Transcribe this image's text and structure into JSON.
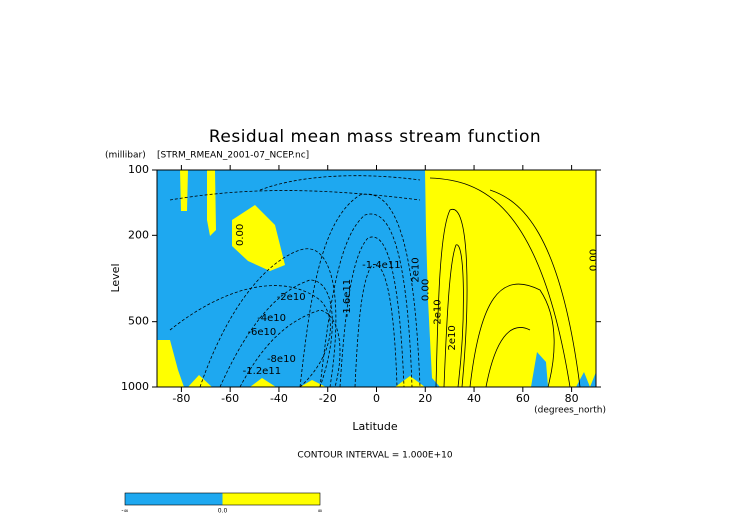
{
  "chart_data": {
    "type": "contour",
    "title": "Residual mean mass stream function",
    "subtitle": "[STRM_RMEAN_2001-07_NCEP.nc]",
    "y_unit": "(millibar)",
    "x_unit": "(degrees_north)",
    "xlabel": "Latitude",
    "ylabel": "Level",
    "note": "CONTOUR INTERVAL = 1.000E+10",
    "xlim": [
      -90,
      90
    ],
    "xticks": [
      -80,
      -60,
      -40,
      -20,
      0,
      20,
      40,
      60,
      80
    ],
    "ylim": [
      1000,
      100
    ],
    "yticks": [
      100,
      200,
      500,
      1000
    ],
    "ylog": true,
    "negative_color": "#1ea8f0",
    "positive_color": "#ffff00",
    "contour_labels": [
      {
        "label": "0.00",
        "x": -56,
        "y": 199,
        "vertical": true
      },
      {
        "label": "-2e10",
        "x": -35,
        "y": 385,
        "vertical": false
      },
      {
        "label": "-4e10",
        "x": -43,
        "y": 481,
        "vertical": false
      },
      {
        "label": "-6e10",
        "x": -47,
        "y": 558,
        "vertical": false
      },
      {
        "label": "-8e10",
        "x": -39,
        "y": 743,
        "vertical": false
      },
      {
        "label": "-1.2e11",
        "x": -47,
        "y": 843,
        "vertical": false
      },
      {
        "label": "-1.4e11",
        "x": 2,
        "y": 274,
        "vertical": false
      },
      {
        "label": "-1.6e11",
        "x": -12,
        "y": 389,
        "vertical": true
      },
      {
        "label": "2e10",
        "x": 16,
        "y": 289,
        "vertical": true
      },
      {
        "label": "0.00",
        "x": 20,
        "y": 357,
        "vertical": true
      },
      {
        "label": "2e10",
        "x": 25,
        "y": 451,
        "vertical": true
      },
      {
        "label": "2e10",
        "x": 31,
        "y": 594,
        "vertical": true
      },
      {
        "label": "0.00",
        "x": 89,
        "y": 260,
        "vertical": true
      }
    ],
    "colorbar": {
      "labels": [
        "-∞",
        "0.0",
        "∞"
      ],
      "colors": [
        "#1ea8f0",
        "#ffff00"
      ]
    }
  }
}
